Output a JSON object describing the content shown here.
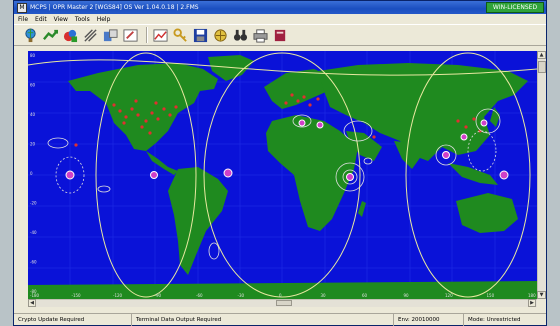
{
  "window": {
    "title": "MCPS | OPR Master 2 [WGS84] OS Ver 1.04.0.18 | 2.FMS",
    "status_badge": "WIN-LICENSED",
    "status_color": "#2fa33a"
  },
  "menubar": {
    "items": [
      "File",
      "Edit",
      "View",
      "Tools",
      "Help"
    ]
  },
  "toolbar": {
    "buttons": [
      "globe-pin-icon",
      "map-arrow-icon",
      "layers-icon",
      "route-icon",
      "planning-icon",
      "pencil-icon",
      "chart-icon",
      "key-icon",
      "save-icon",
      "satellite-icon",
      "binoculars-icon",
      "print-icon",
      "book-icon"
    ]
  },
  "map": {
    "ocean_color": "#0a12d8",
    "land_color": "#1f8a1f",
    "lat_ticks": [
      "80",
      "60",
      "40",
      "20",
      "0",
      "-20",
      "-40",
      "-60",
      "-80"
    ],
    "lon_ticks": [
      "-180",
      "-150",
      "-120",
      "-90",
      "-60",
      "-30",
      "0",
      "30",
      "60",
      "90",
      "120",
      "150",
      "180"
    ]
  },
  "statusbar": {
    "crypto": "Crypto Update Required",
    "terminal": "Terminal Data Output Required",
    "env": "Env: 20010000",
    "mode": "Mode: Unrestricted"
  }
}
